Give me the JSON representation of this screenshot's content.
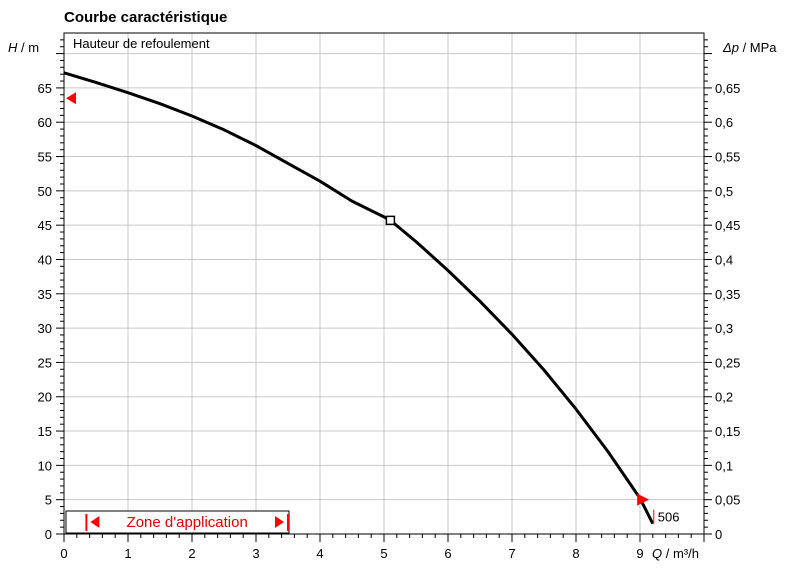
{
  "chart_data": {
    "type": "line",
    "title": "Courbe caractéristique",
    "series_label": "Hauteur de refoulement",
    "xlabel_var": "Q",
    "xlabel_unit": "/ m³/h",
    "ylabel_var": "H",
    "ylabel_unit": "/ m",
    "y2label_var": "Δp",
    "y2label_unit": "/ MPa",
    "xlim": [
      0,
      10
    ],
    "ylim": [
      0,
      73
    ],
    "y2_per_y": 0.01,
    "x_ticks": [
      0,
      1,
      2,
      3,
      4,
      5,
      6,
      7,
      8,
      9
    ],
    "y_ticks": [
      0,
      5,
      10,
      15,
      20,
      25,
      30,
      35,
      40,
      45,
      50,
      55,
      60,
      65
    ],
    "y2_ticks": [
      "0",
      "0,05",
      "0,1",
      "0,15",
      "0,2",
      "0,25",
      "0,3",
      "0,35",
      "0,4",
      "0,45",
      "0,5",
      "0,55",
      "0,6",
      "0,65"
    ],
    "grid": true,
    "series": [
      {
        "x": [
          0,
          0.5,
          1,
          1.5,
          2,
          2.5,
          3,
          3.5,
          4,
          4.5,
          5,
          5.1,
          5.5,
          6,
          6.5,
          7,
          7.5,
          8,
          8.5,
          9,
          9.2
        ],
        "y": [
          67.2,
          65.8,
          64.3,
          62.7,
          60.9,
          58.9,
          56.6,
          54.0,
          51.4,
          48.5,
          46.2,
          45.7,
          42.6,
          38.4,
          33.9,
          29.1,
          23.9,
          18.2,
          12.0,
          5.2,
          1.5
        ]
      }
    ],
    "operating_point": {
      "x": 5.1,
      "y": 45.7
    },
    "endpoint_label": "506",
    "endpoint": {
      "x": 9.2,
      "y": 1.5
    },
    "range_markers": {
      "start_y": 63.5,
      "end_x": 9.05,
      "end_y": 5.0
    },
    "zone": {
      "label": "Zone d'application",
      "x_start": 0.35,
      "x_end": 3.5
    },
    "colors": {
      "curve": "#000000",
      "grid": "#c8c8c8",
      "marker": "#ff0000",
      "zone_text": "#e00000"
    }
  }
}
